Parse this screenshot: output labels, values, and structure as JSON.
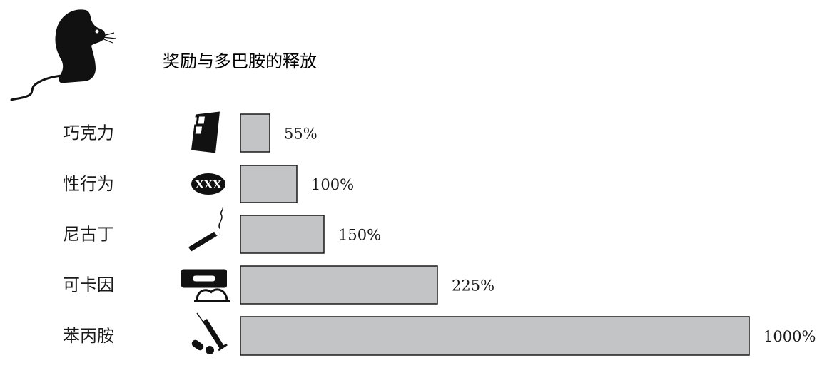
{
  "chart_data": {
    "type": "bar",
    "orientation": "horizontal",
    "title": "奖励与多巴胺的释放",
    "categories": [
      "巧克力",
      "性行为",
      "尼古丁",
      "可卡因",
      "苯丙胺"
    ],
    "values": [
      55,
      100,
      150,
      225,
      1000
    ],
    "value_labels": [
      "55%",
      "100%",
      "150%",
      "225%",
      "1000%"
    ],
    "icons": [
      "chocolate-bar-icon",
      "xxx-badge-icon",
      "cigarette-icon",
      "razor-blade-powder-icon",
      "syringe-pills-icon"
    ],
    "header_icon": "mouse-icon",
    "colors": {
      "bar_fill": "#c3c4c6",
      "bar_stroke": "#1a1a1a",
      "text": "#1a1a1a",
      "icon": "#111111"
    }
  }
}
